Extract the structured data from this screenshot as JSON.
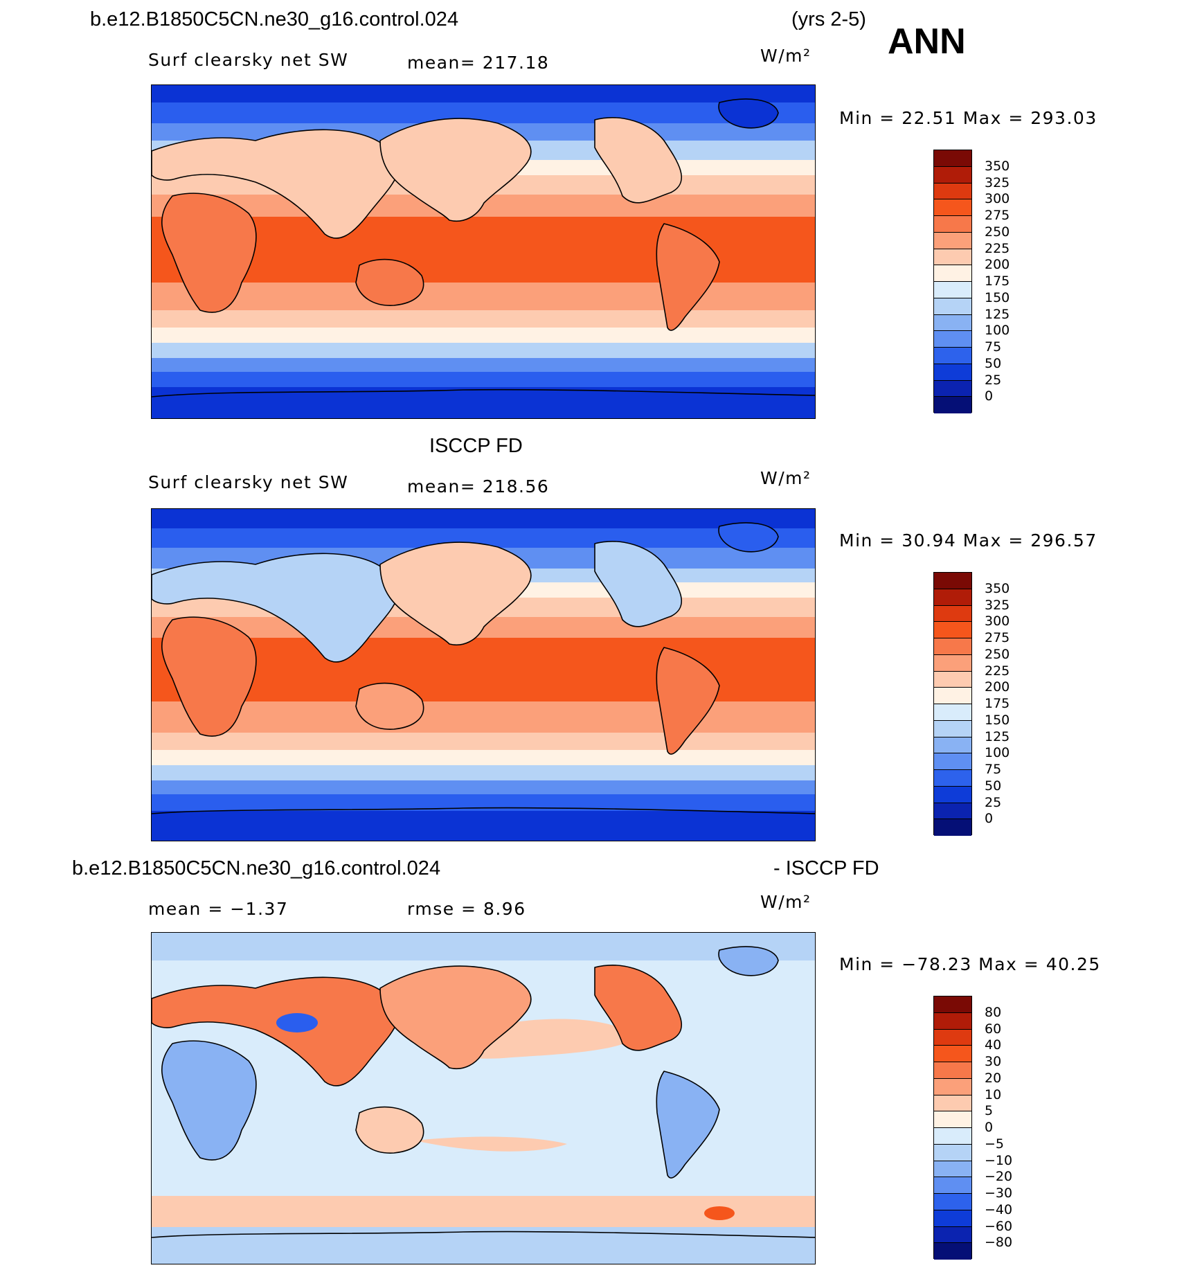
{
  "header": {
    "case_name": "b.e12.B1850C5CN.ne30_g16.control.024",
    "years": "(yrs 2-5)",
    "season": "ANN"
  },
  "panels": [
    {
      "id": "model",
      "title": "",
      "variable": "Surf clearsky net SW",
      "mean_text": "mean= 217.18",
      "units": "W/m²",
      "minmax_text": "Min =   22.51  Max = 293.03",
      "min": 22.51,
      "max": 293.03,
      "mean": 217.18
    },
    {
      "id": "obs",
      "title": "ISCCP FD",
      "variable": "Surf clearsky net SW",
      "mean_text": "mean= 218.56",
      "units": "W/m²",
      "minmax_text": "Min =   30.94  Max = 296.57",
      "min": 30.94,
      "max": 296.57,
      "mean": 218.56
    },
    {
      "id": "diff",
      "title_left": "b.e12.B1850C5CN.ne30_g16.control.024",
      "title_right": "- ISCCP FD",
      "mean_text": "mean =   −1.37",
      "rmse_text": "rmse =    8.96",
      "units": "W/m²",
      "minmax_text": "Min = −78.23  Max =   40.25",
      "min": -78.23,
      "max": 40.25,
      "mean": -1.37,
      "rmse": 8.96
    }
  ],
  "colorbars": {
    "abs": {
      "labels": [
        "350",
        "325",
        "300",
        "275",
        "250",
        "225",
        "200",
        "175",
        "150",
        "125",
        "100",
        "75",
        "50",
        "25",
        "0"
      ],
      "colors": [
        "#7a0a05",
        "#b01c08",
        "#de3a10",
        "#f5561c",
        "#f7784a",
        "#fba07a",
        "#fdcbb0",
        "#fff2e4",
        "#d9ecfb",
        "#b5d3f6",
        "#89b2f3",
        "#5f8ff2",
        "#2d62ec",
        "#0e3cd8",
        "#0b23b0",
        "#050f76"
      ]
    },
    "diff": {
      "labels": [
        "80",
        "60",
        "40",
        "30",
        "20",
        "10",
        "5",
        "0",
        "−5",
        "−10",
        "−20",
        "−30",
        "−40",
        "−60",
        "−80"
      ],
      "colors": [
        "#7a0a05",
        "#b01c08",
        "#de3a10",
        "#f5561c",
        "#f7784a",
        "#fba07a",
        "#fdcbb0",
        "#fff2e4",
        "#d9ecfb",
        "#b5d3f6",
        "#89b2f3",
        "#5f8ff2",
        "#2d62ec",
        "#0e3cd8",
        "#0b23b0",
        "#050f76"
      ]
    }
  },
  "map_colors": {
    "deep_blue": "#0b33d4",
    "blue": "#2a5eee",
    "mid_blue": "#5f8ff2",
    "light_blue": "#b5d3f6",
    "pale_blue": "#d9ecfb",
    "cream": "#fff2e4",
    "peach": "#fdcbb0",
    "salmon": "#fba07a",
    "orange": "#f7784a",
    "red_orange": "#f5561c",
    "land_outline": "#000000"
  }
}
